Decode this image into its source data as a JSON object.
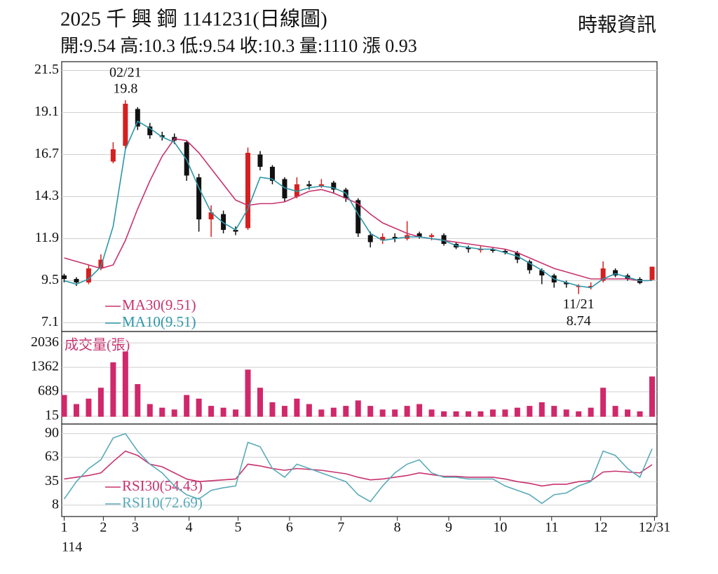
{
  "chart_data": [
    {
      "type": "candlestick",
      "title": "2025 千 興 鋼 1141231(日線圖)",
      "subtitle": "開:9.54 高:10.3 低:9.54 收:10.3 量:1110 漲 0.93",
      "source": "時報資訊",
      "x": [
        1,
        6,
        11,
        16,
        21,
        26,
        31,
        36,
        41,
        46,
        51,
        56,
        61,
        66,
        71,
        76,
        81,
        86,
        91,
        96,
        101,
        106,
        111,
        116,
        121,
        126,
        131,
        136,
        141,
        146,
        151,
        156,
        161,
        166,
        171,
        176,
        181,
        186,
        191,
        196,
        201,
        206,
        211,
        216,
        221,
        226,
        231,
        236,
        241
      ],
      "open": [
        9.8,
        9.6,
        9.4,
        10.2,
        16.3,
        17.2,
        19.3,
        18.3,
        17.8,
        17.7,
        17.4,
        15.4,
        13.0,
        13.3,
        12.4,
        12.5,
        16.7,
        16.0,
        15.3,
        14.3,
        15.0,
        14.9,
        15.1,
        14.7,
        14.1,
        12.1,
        11.8,
        12.0,
        11.9,
        12.2,
        12.0,
        12.1,
        11.6,
        11.4,
        11.3,
        11.3,
        11.2,
        11.1,
        10.6,
        10.1,
        9.8,
        9.4,
        9.2,
        9.2,
        9.5,
        10.1,
        9.8,
        9.6,
        9.54
      ],
      "high": [
        9.9,
        9.7,
        10.4,
        11.0,
        17.4,
        19.8,
        19.4,
        18.5,
        18.0,
        17.9,
        17.5,
        15.6,
        13.8,
        13.5,
        12.6,
        17.1,
        16.9,
        16.1,
        15.4,
        15.4,
        15.2,
        15.3,
        15.2,
        14.8,
        14.2,
        12.3,
        12.2,
        12.2,
        12.9,
        12.3,
        12.2,
        12.2,
        11.7,
        11.5,
        11.5,
        11.4,
        11.3,
        11.2,
        10.7,
        10.2,
        9.9,
        9.5,
        9.3,
        9.4,
        10.6,
        10.2,
        9.9,
        9.7,
        10.3
      ],
      "low": [
        9.4,
        9.2,
        9.3,
        10.1,
        16.2,
        17.0,
        18.1,
        17.6,
        17.5,
        17.3,
        15.2,
        12.3,
        12.0,
        12.2,
        12.1,
        12.4,
        15.8,
        15.0,
        14.0,
        14.2,
        14.7,
        14.8,
        14.5,
        14.0,
        12.0,
        11.4,
        11.6,
        11.7,
        11.8,
        11.9,
        11.8,
        11.5,
        11.3,
        11.1,
        11.1,
        11.1,
        11.0,
        10.5,
        9.9,
        9.3,
        9.1,
        9.1,
        8.74,
        9.0,
        9.4,
        9.7,
        9.5,
        9.3,
        9.54
      ],
      "close": [
        9.6,
        9.4,
        10.2,
        10.7,
        17.0,
        19.6,
        18.3,
        17.8,
        17.7,
        17.5,
        15.5,
        13.0,
        13.4,
        12.4,
        12.3,
        16.8,
        16.0,
        15.2,
        14.2,
        15.0,
        14.9,
        15.0,
        14.7,
        14.2,
        12.2,
        11.7,
        12.0,
        11.9,
        12.1,
        12.0,
        12.1,
        11.6,
        11.4,
        11.3,
        11.3,
        11.2,
        11.1,
        10.7,
        10.1,
        9.8,
        9.4,
        9.3,
        9.2,
        9.2,
        10.2,
        9.8,
        9.6,
        9.37,
        10.3
      ],
      "up_color": "#d42020",
      "down_color": "#111111",
      "series": [
        {
          "name": "MA30(9.51)",
          "color": "#c8326e",
          "values": [
            10.8,
            10.6,
            10.4,
            10.2,
            10.4,
            11.8,
            13.6,
            15.2,
            16.6,
            17.6,
            17.5,
            16.8,
            15.9,
            15.0,
            14.1,
            13.8,
            13.9,
            13.9,
            14.0,
            14.3,
            14.6,
            14.7,
            14.5,
            14.2,
            13.9,
            13.3,
            12.8,
            12.5,
            12.2,
            12.0,
            11.9,
            11.8,
            11.7,
            11.6,
            11.5,
            11.4,
            11.3,
            11.1,
            10.8,
            10.5,
            10.2,
            10.0,
            9.8,
            9.6,
            9.6,
            9.6,
            9.6,
            9.5,
            9.51
          ]
        },
        {
          "name": "MA10(9.51)",
          "color": "#2c96a8",
          "values": [
            9.5,
            9.3,
            9.6,
            10.3,
            12.6,
            17.0,
            18.6,
            18.2,
            17.7,
            17.4,
            16.4,
            14.8,
            13.4,
            12.8,
            12.4,
            13.6,
            15.4,
            15.3,
            14.8,
            14.6,
            14.8,
            14.9,
            14.8,
            14.5,
            13.3,
            12.2,
            11.8,
            11.9,
            12.0,
            12.0,
            11.9,
            11.8,
            11.5,
            11.4,
            11.3,
            11.3,
            11.1,
            10.9,
            10.5,
            10.1,
            9.6,
            9.4,
            9.2,
            9.1,
            9.6,
            9.9,
            9.7,
            9.5,
            9.51
          ]
        }
      ],
      "annotations": [
        {
          "x": 26,
          "value": 19.8,
          "label": "02/21",
          "side": "above"
        },
        {
          "x": 211,
          "value": 8.74,
          "label": "11/21",
          "side": "below"
        }
      ],
      "ylim": [
        6.6,
        22.0
      ],
      "yticks": [
        21.5,
        19.1,
        16.7,
        14.3,
        11.9,
        9.5,
        7.1
      ],
      "grid": true,
      "xlim": [
        0,
        243
      ],
      "xticks": [
        1,
        {
          "value": 17,
          "label": "2"
        },
        {
          "value": 30,
          "label": "3"
        },
        {
          "value": 52,
          "label": "4"
        },
        {
          "value": 72,
          "label": "5"
        },
        {
          "value": 93,
          "label": "6"
        },
        {
          "value": 114,
          "label": "7"
        },
        {
          "value": 137,
          "label": "8"
        },
        {
          "value": 158,
          "label": "9"
        },
        {
          "value": 179,
          "label": "10"
        },
        {
          "value": 200,
          "label": "11"
        },
        {
          "value": 220,
          "label": "12"
        },
        {
          "value": 242,
          "label": "12/31"
        }
      ],
      "x_year_label": "114"
    },
    {
      "type": "bar",
      "title": "成交量(張)",
      "color": "#d0286a",
      "x": [
        1,
        6,
        11,
        16,
        21,
        26,
        31,
        36,
        41,
        46,
        51,
        56,
        61,
        66,
        71,
        76,
        81,
        86,
        91,
        96,
        101,
        106,
        111,
        116,
        121,
        126,
        131,
        136,
        141,
        146,
        151,
        156,
        161,
        166,
        171,
        176,
        181,
        186,
        191,
        196,
        201,
        206,
        211,
        216,
        221,
        226,
        231,
        236,
        241
      ],
      "values": [
        600,
        350,
        500,
        800,
        1500,
        1800,
        900,
        350,
        250,
        200,
        600,
        500,
        300,
        250,
        200,
        1300,
        800,
        400,
        300,
        500,
        350,
        200,
        250,
        300,
        450,
        300,
        200,
        200,
        300,
        350,
        200,
        150,
        150,
        150,
        150,
        200,
        200,
        250,
        300,
        400,
        300,
        200,
        150,
        250,
        800,
        300,
        200,
        150,
        1110
      ],
      "ylim": [
        -200,
        2350
      ],
      "yticks": [
        2036,
        1362,
        689,
        15
      ],
      "grid": true,
      "xlim": [
        0,
        243
      ]
    },
    {
      "type": "line",
      "x": [
        1,
        6,
        11,
        16,
        21,
        26,
        31,
        36,
        41,
        46,
        51,
        56,
        61,
        66,
        71,
        76,
        81,
        86,
        91,
        96,
        101,
        106,
        111,
        116,
        121,
        126,
        131,
        136,
        141,
        146,
        151,
        156,
        161,
        166,
        171,
        176,
        181,
        186,
        191,
        196,
        201,
        206,
        211,
        216,
        221,
        226,
        231,
        236,
        241
      ],
      "series": [
        {
          "name": "RSI30(54.43)",
          "color": "#c8326e",
          "values": [
            38,
            40,
            42,
            45,
            58,
            70,
            65,
            55,
            52,
            45,
            38,
            35,
            36,
            37,
            38,
            55,
            53,
            50,
            48,
            50,
            49,
            48,
            46,
            44,
            40,
            37,
            38,
            40,
            42,
            45,
            43,
            41,
            41,
            40,
            40,
            40,
            38,
            35,
            33,
            30,
            32,
            32,
            35,
            36,
            46,
            47,
            46,
            45,
            54.43
          ]
        },
        {
          "name": "RSI10(72.69)",
          "color": "#5aaab8",
          "values": [
            15,
            35,
            50,
            60,
            85,
            90,
            70,
            55,
            45,
            30,
            20,
            15,
            25,
            28,
            30,
            80,
            75,
            50,
            40,
            55,
            50,
            45,
            40,
            35,
            20,
            12,
            30,
            45,
            55,
            60,
            45,
            40,
            40,
            38,
            38,
            38,
            30,
            25,
            20,
            10,
            20,
            22,
            30,
            35,
            70,
            65,
            50,
            40,
            72.69
          ]
        }
      ],
      "ylim": [
        -5,
        101
      ],
      "yticks": [
        90,
        63,
        35,
        8
      ],
      "grid": true,
      "xlim": [
        0,
        243
      ]
    }
  ]
}
